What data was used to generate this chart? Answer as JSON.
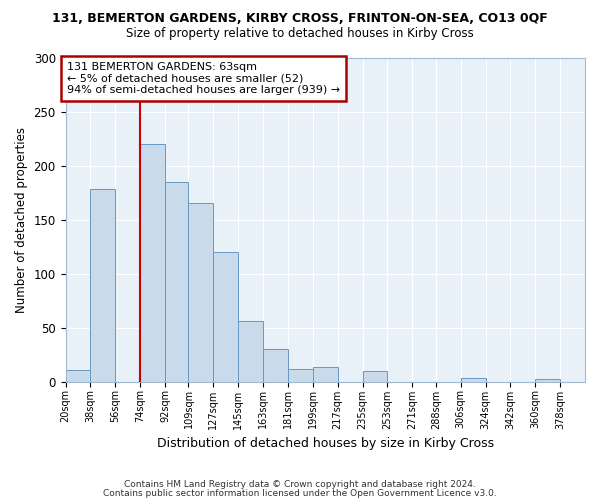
{
  "title": "131, BEMERTON GARDENS, KIRBY CROSS, FRINTON-ON-SEA, CO13 0QF",
  "subtitle": "Size of property relative to detached houses in Kirby Cross",
  "xlabel": "Distribution of detached houses by size in Kirby Cross",
  "ylabel": "Number of detached properties",
  "bin_labels": [
    "20sqm",
    "38sqm",
    "56sqm",
    "74sqm",
    "92sqm",
    "109sqm",
    "127sqm",
    "145sqm",
    "163sqm",
    "181sqm",
    "199sqm",
    "217sqm",
    "235sqm",
    "253sqm",
    "271sqm",
    "288sqm",
    "306sqm",
    "324sqm",
    "342sqm",
    "360sqm",
    "378sqm"
  ],
  "bar_values": [
    11,
    178,
    0,
    220,
    185,
    165,
    120,
    56,
    30,
    12,
    14,
    0,
    10,
    0,
    0,
    0,
    3,
    0,
    0,
    2
  ],
  "bar_color": "#c9daea",
  "bar_edge_color": "#6899c4",
  "plot_bg_color": "#e8f0f8",
  "vline_x_index": 2,
  "vline_color": "#cc0000",
  "ylim": [
    0,
    300
  ],
  "yticks": [
    0,
    50,
    100,
    150,
    200,
    250,
    300
  ],
  "annotation_title": "131 BEMERTON GARDENS: 63sqm",
  "annotation_line1": "← 5% of detached houses are smaller (52)",
  "annotation_line2": "94% of semi-detached houses are larger (939) →",
  "annotation_box_color": "#aa0000",
  "footer1": "Contains HM Land Registry data © Crown copyright and database right 2024.",
  "footer2": "Contains public sector information licensed under the Open Government Licence v3.0.",
  "bin_edges": [
    20,
    38,
    56,
    74,
    92,
    109,
    127,
    145,
    163,
    181,
    199,
    217,
    235,
    253,
    271,
    288,
    306,
    324,
    342,
    360,
    378,
    396
  ]
}
